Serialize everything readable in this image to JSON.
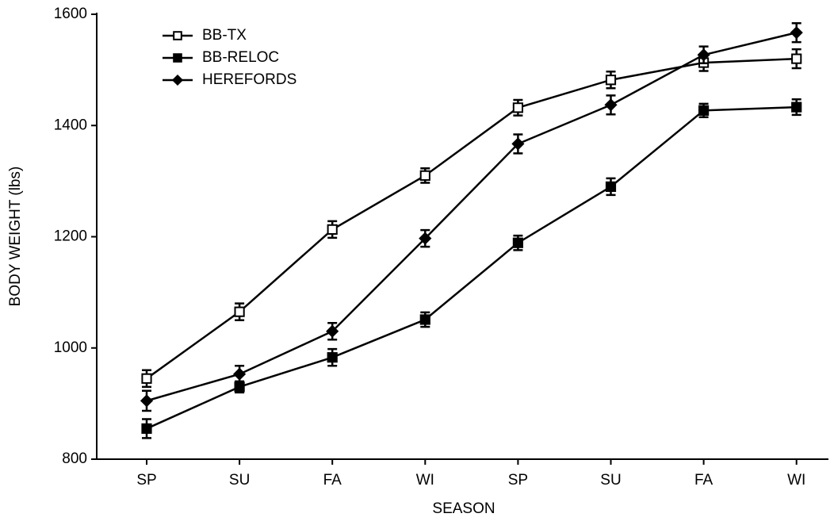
{
  "chart_data": {
    "type": "line",
    "x_label": "SEASON",
    "y_label": "BODY WEIGHT (lbs)",
    "categories": [
      "SP",
      "SU",
      "FA",
      "WI",
      "SP",
      "SU",
      "FA",
      "WI"
    ],
    "ylim": [
      800,
      1600
    ],
    "yticks": [
      800,
      1000,
      1200,
      1400,
      1600
    ],
    "legend": "upper left",
    "grid": false,
    "series": [
      {
        "name": "BB-TX",
        "color": "#000000",
        "marker": "square-open",
        "values": [
          945,
          1065,
          1213,
          1310,
          1432,
          1482,
          1513,
          1520
        ],
        "errors": [
          15,
          15,
          15,
          13,
          14,
          15,
          15,
          17
        ]
      },
      {
        "name": "BB-RELOC",
        "color": "#000000",
        "marker": "square",
        "values": [
          855,
          930,
          983,
          1051,
          1189,
          1290,
          1427,
          1433
        ],
        "errors": [
          17,
          10,
          15,
          13,
          13,
          15,
          12,
          14
        ]
      },
      {
        "name": "HEREFORDS",
        "color": "#000000",
        "marker": "diamond",
        "values": [
          905,
          953,
          1030,
          1197,
          1367,
          1437,
          1527,
          1567
        ],
        "errors": [
          18,
          15,
          15,
          15,
          17,
          17,
          15,
          17
        ]
      }
    ]
  }
}
